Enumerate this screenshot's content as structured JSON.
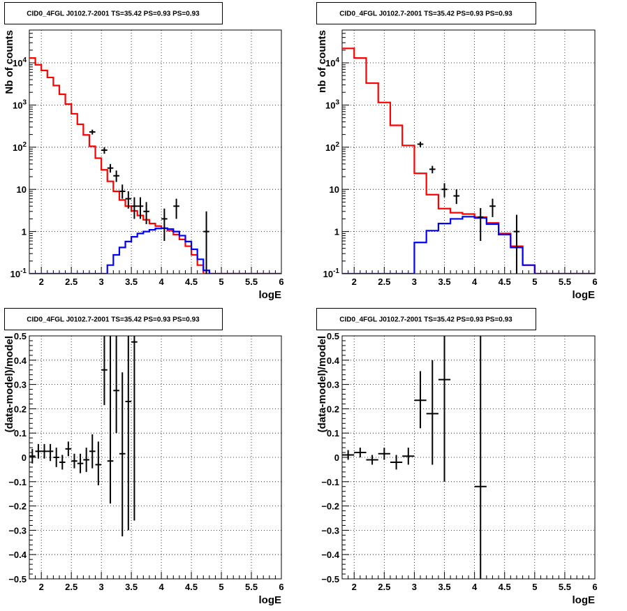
{
  "chart_data": [
    {
      "type": "histogram",
      "title": "CID0_4FGL J0102.7-2001 TS=35.42 PS=0.93 PS=0.93",
      "xlabel": "logE",
      "ylabel": "Nb of counts",
      "xlim": [
        1.8,
        6.0
      ],
      "ylim": [
        0.1,
        60000
      ],
      "yscale": "log",
      "grid": true,
      "x_ticks": [
        "2",
        "2.5",
        "3",
        "3.5",
        "4",
        "4.5",
        "5",
        "5.5",
        "6"
      ],
      "y_ticks": [
        "10^-1",
        "1",
        "10",
        "10^2",
        "10^3",
        "10^4"
      ],
      "bin_edges": [
        1.8,
        1.9,
        2.0,
        2.1,
        2.2,
        2.3,
        2.4,
        2.5,
        2.6,
        2.7,
        2.8,
        2.9,
        3.0,
        3.1,
        3.2,
        3.3,
        3.4,
        3.5,
        3.6,
        3.7,
        3.8,
        3.9,
        4.0,
        4.1,
        4.2,
        4.3,
        4.4,
        4.5,
        4.6,
        4.7,
        4.8,
        4.9,
        5.0,
        5.1,
        5.2,
        5.3,
        5.4,
        5.5,
        5.6,
        5.7,
        5.8,
        5.9,
        6.0
      ],
      "series": [
        {
          "role": "total_model",
          "color": "#ff0000",
          "values": [
            13000,
            9000,
            6600,
            4500,
            2900,
            1800,
            1050,
            620,
            350,
            195,
            105,
            55,
            29,
            15.5,
            9,
            5.6,
            4,
            3.1,
            2.4,
            1.9,
            1.55,
            1.35,
            1.2,
            1.05,
            0.85,
            0.65,
            0.45,
            0.28,
            0.16,
            0.1,
            0.1,
            0.1,
            0.1,
            0.1,
            0.1,
            0.1,
            0.1,
            0.1,
            0.1,
            0.1,
            0.1,
            0.1
          ]
        },
        {
          "role": "source_model",
          "color": "#0000ff",
          "values": [
            0.1,
            0.1,
            0.1,
            0.1,
            0.1,
            0.1,
            0.1,
            0.1,
            0.1,
            0.1,
            0.1,
            0.1,
            0.1,
            0.16,
            0.28,
            0.42,
            0.58,
            0.75,
            0.9,
            1.0,
            1.1,
            1.18,
            1.2,
            1.15,
            1.0,
            0.8,
            0.58,
            0.38,
            0.22,
            0.12,
            0.1,
            0.1,
            0.1,
            0.1,
            0.1,
            0.1,
            0.1,
            0.1,
            0.1,
            0.1,
            0.1,
            0.1
          ]
        },
        {
          "role": "data",
          "color": "#000000",
          "x": [
            2.85,
            3.05,
            3.15,
            3.25,
            3.35,
            3.45,
            3.55,
            3.65,
            3.75,
            4.05,
            4.25,
            4.75
          ],
          "y": [
            230,
            85,
            32,
            21,
            9,
            6,
            4,
            4,
            3,
            2,
            4,
            1
          ],
          "ylo": [
            200,
            70,
            25,
            15,
            6,
            3.5,
            2,
            2,
            1.5,
            0.6,
            2,
            0.1
          ],
          "yhi": [
            260,
            100,
            40,
            28,
            13,
            9,
            6.5,
            6.5,
            5,
            3.5,
            6,
            3
          ]
        }
      ]
    },
    {
      "type": "histogram",
      "title": "CID0_4FGL J0102.7-2001 TS=35.42 PS=0.93 PS=0.93",
      "xlabel": "logE",
      "ylabel": "nb of counts",
      "xlim": [
        1.8,
        6.0
      ],
      "ylim": [
        0.1,
        60000
      ],
      "yscale": "log",
      "grid": true,
      "x_ticks": [
        "2",
        "2.5",
        "3",
        "3.5",
        "4",
        "4.5",
        "5",
        "5.5",
        "6"
      ],
      "y_ticks": [
        "10^-1",
        "1",
        "10",
        "10^2",
        "10^3",
        "10^4"
      ],
      "bin_edges": [
        1.8,
        2.0,
        2.2,
        2.4,
        2.6,
        2.8,
        3.0,
        3.2,
        3.4,
        3.6,
        3.8,
        4.0,
        4.2,
        4.4,
        4.6,
        4.8,
        5.0,
        5.2,
        5.4,
        5.6,
        5.8,
        6.0
      ],
      "series": [
        {
          "role": "total_model",
          "color": "#ff0000",
          "values": [
            22000,
            13000,
            3300,
            1150,
            330,
            110,
            24,
            7.5,
            3.5,
            2.8,
            2.6,
            2.2,
            1.6,
            0.9,
            0.45,
            0.16,
            0.1,
            0.1,
            0.1,
            0.1,
            0.1
          ]
        },
        {
          "role": "source_model",
          "color": "#0000ff",
          "values": [
            0.1,
            0.1,
            0.1,
            0.1,
            0.1,
            0.1,
            0.55,
            1.05,
            1.55,
            2.0,
            2.25,
            2.1,
            1.5,
            0.85,
            0.42,
            0.16,
            0.1,
            0.1,
            0.1,
            0.1,
            0.1
          ]
        },
        {
          "role": "data",
          "color": "#000000",
          "x": [
            3.1,
            3.3,
            3.5,
            3.7,
            4.1,
            4.3,
            4.7
          ],
          "y": [
            118,
            30,
            10,
            7,
            2.2,
            4,
            1
          ],
          "ylo": [
            100,
            24,
            6.5,
            4.5,
            0.6,
            2.2,
            0.1
          ],
          "yhi": [
            135,
            36,
            14,
            10,
            3.6,
            6,
            2.5
          ]
        }
      ]
    },
    {
      "type": "scatter",
      "title": "CID0_4FGL J0102.7-2001 TS=35.42 PS=0.93 PS=0.93",
      "xlabel": "logE",
      "ylabel": "(data-model)/model",
      "xlim": [
        1.8,
        6.0
      ],
      "ylim": [
        -0.5,
        0.5
      ],
      "grid": true,
      "x_ticks": [
        "2",
        "2.5",
        "3",
        "3.5",
        "4",
        "4.5",
        "5",
        "5.5",
        "6"
      ],
      "y_ticks": [
        "-0.5",
        "-0.4",
        "-0.3",
        "-0.2",
        "-0.1",
        "0",
        "0.1",
        "0.2",
        "0.3",
        "0.4",
        "0.5"
      ],
      "series": [
        {
          "role": "data",
          "color": "#000000",
          "xerr": 0.05,
          "x": [
            1.85,
            1.95,
            2.05,
            2.15,
            2.25,
            2.35,
            2.45,
            2.55,
            2.65,
            2.75,
            2.85,
            2.95,
            3.05,
            3.15,
            3.25,
            3.35,
            3.45,
            3.55
          ],
          "y": [
            0.005,
            0.025,
            0.025,
            0.025,
            0.0,
            -0.02,
            0.035,
            -0.015,
            -0.025,
            -0.01,
            0.025,
            -0.03,
            0.36,
            -0.015,
            0.275,
            0.015,
            0.23,
            0.475
          ],
          "ylo": [
            -0.025,
            -0.005,
            -0.005,
            -0.015,
            -0.04,
            -0.05,
            0.005,
            -0.045,
            -0.065,
            -0.06,
            -0.045,
            -0.115,
            0.215,
            -0.19,
            0.1,
            -0.325,
            -0.3,
            -0.26
          ],
          "yhi": [
            0.035,
            0.055,
            0.055,
            0.055,
            0.04,
            0.01,
            0.065,
            0.015,
            0.015,
            0.04,
            0.095,
            0.065,
            0.5,
            0.5,
            0.5,
            0.35,
            0.5,
            0.5
          ]
        }
      ]
    },
    {
      "type": "scatter",
      "title": "CID0_4FGL J0102.7-2001 TS=35.42 PS=0.93 PS=0.93",
      "xlabel": "logE",
      "ylabel": "(data-model)/model",
      "xlim": [
        1.8,
        6.0
      ],
      "ylim": [
        -0.5,
        0.5
      ],
      "grid": true,
      "x_ticks": [
        "2",
        "2.5",
        "3",
        "3.5",
        "4",
        "4.5",
        "5",
        "5.5",
        "6"
      ],
      "y_ticks": [
        "-0.5",
        "-0.4",
        "-0.3",
        "-0.2",
        "-0.1",
        "0",
        "0.1",
        "0.2",
        "0.3",
        "0.4",
        "0.5"
      ],
      "series": [
        {
          "role": "data",
          "color": "#000000",
          "xerr": 0.1,
          "x": [
            1.9,
            2.1,
            2.3,
            2.5,
            2.7,
            2.9,
            3.1,
            3.3,
            3.5,
            4.1
          ],
          "y": [
            0.01,
            0.02,
            -0.01,
            0.015,
            -0.02,
            0.005,
            0.235,
            0.18,
            0.32,
            -0.12
          ],
          "ylo": [
            -0.01,
            0.0,
            -0.03,
            -0.01,
            -0.05,
            -0.03,
            0.12,
            -0.03,
            -0.1,
            -0.5
          ],
          "yhi": [
            0.03,
            0.04,
            0.01,
            0.04,
            0.01,
            0.04,
            0.355,
            0.4,
            0.5,
            0.5
          ]
        }
      ]
    }
  ]
}
